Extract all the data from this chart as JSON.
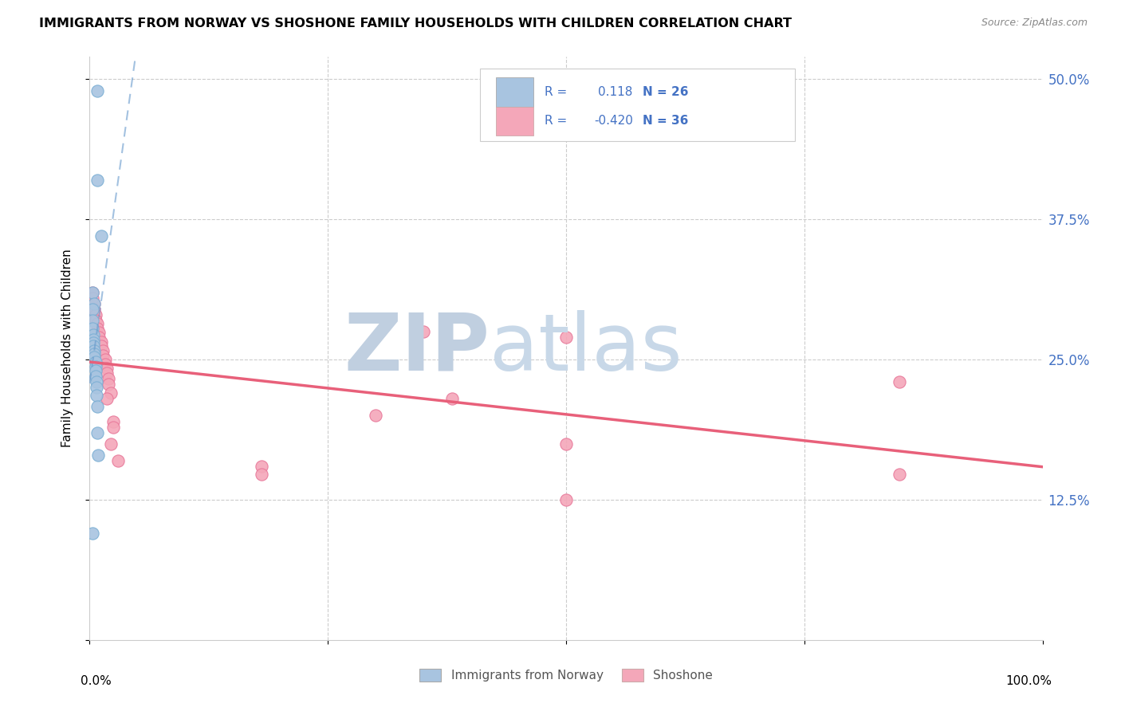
{
  "title": "IMMIGRANTS FROM NORWAY VS SHOSHONE FAMILY HOUSEHOLDS WITH CHILDREN CORRELATION CHART",
  "source": "Source: ZipAtlas.com",
  "ylabel": "Family Households with Children",
  "ytick_values": [
    0.0,
    0.125,
    0.25,
    0.375,
    0.5
  ],
  "xlim": [
    0.0,
    1.0
  ],
  "ylim": [
    0.0,
    0.52
  ],
  "norway_R": 0.118,
  "norway_N": 26,
  "shoshone_R": -0.42,
  "shoshone_N": 36,
  "norway_color": "#a8c4e0",
  "norway_edge": "#7bafd4",
  "shoshone_color": "#f4a7b9",
  "shoshone_edge": "#e8789a",
  "norway_trend_color": "#6699cc",
  "shoshone_trend_color": "#e8607a",
  "norway_scatter": [
    [
      0.008,
      0.49
    ],
    [
      0.008,
      0.41
    ],
    [
      0.012,
      0.36
    ],
    [
      0.003,
      0.31
    ],
    [
      0.005,
      0.3
    ],
    [
      0.003,
      0.295
    ],
    [
      0.003,
      0.285
    ],
    [
      0.003,
      0.278
    ],
    [
      0.004,
      0.272
    ],
    [
      0.004,
      0.268
    ],
    [
      0.004,
      0.265
    ],
    [
      0.004,
      0.262
    ],
    [
      0.005,
      0.258
    ],
    [
      0.005,
      0.255
    ],
    [
      0.005,
      0.252
    ],
    [
      0.006,
      0.248
    ],
    [
      0.006,
      0.244
    ],
    [
      0.006,
      0.24
    ],
    [
      0.006,
      0.235
    ],
    [
      0.007,
      0.23
    ],
    [
      0.007,
      0.225
    ],
    [
      0.007,
      0.218
    ],
    [
      0.008,
      0.208
    ],
    [
      0.008,
      0.185
    ],
    [
      0.009,
      0.165
    ],
    [
      0.003,
      0.095
    ]
  ],
  "shoshone_scatter": [
    [
      0.003,
      0.31
    ],
    [
      0.003,
      0.305
    ],
    [
      0.005,
      0.3
    ],
    [
      0.005,
      0.295
    ],
    [
      0.006,
      0.29
    ],
    [
      0.006,
      0.285
    ],
    [
      0.008,
      0.282
    ],
    [
      0.008,
      0.278
    ],
    [
      0.01,
      0.274
    ],
    [
      0.01,
      0.27
    ],
    [
      0.012,
      0.266
    ],
    [
      0.012,
      0.262
    ],
    [
      0.014,
      0.258
    ],
    [
      0.014,
      0.254
    ],
    [
      0.016,
      0.25
    ],
    [
      0.016,
      0.246
    ],
    [
      0.018,
      0.242
    ],
    [
      0.018,
      0.238
    ],
    [
      0.02,
      0.233
    ],
    [
      0.02,
      0.228
    ],
    [
      0.022,
      0.22
    ],
    [
      0.018,
      0.215
    ],
    [
      0.025,
      0.195
    ],
    [
      0.025,
      0.19
    ],
    [
      0.022,
      0.175
    ],
    [
      0.35,
      0.275
    ],
    [
      0.5,
      0.27
    ],
    [
      0.38,
      0.215
    ],
    [
      0.3,
      0.2
    ],
    [
      0.5,
      0.175
    ],
    [
      0.85,
      0.23
    ],
    [
      0.03,
      0.16
    ],
    [
      0.18,
      0.155
    ],
    [
      0.18,
      0.148
    ],
    [
      0.5,
      0.125
    ],
    [
      0.85,
      0.148
    ]
  ],
  "background_color": "#ffffff",
  "grid_color": "#cccccc",
  "legend_text_color": "#4472c4",
  "watermark_zip_color": "#c0cfe0",
  "watermark_atlas_color": "#c8d8e8"
}
